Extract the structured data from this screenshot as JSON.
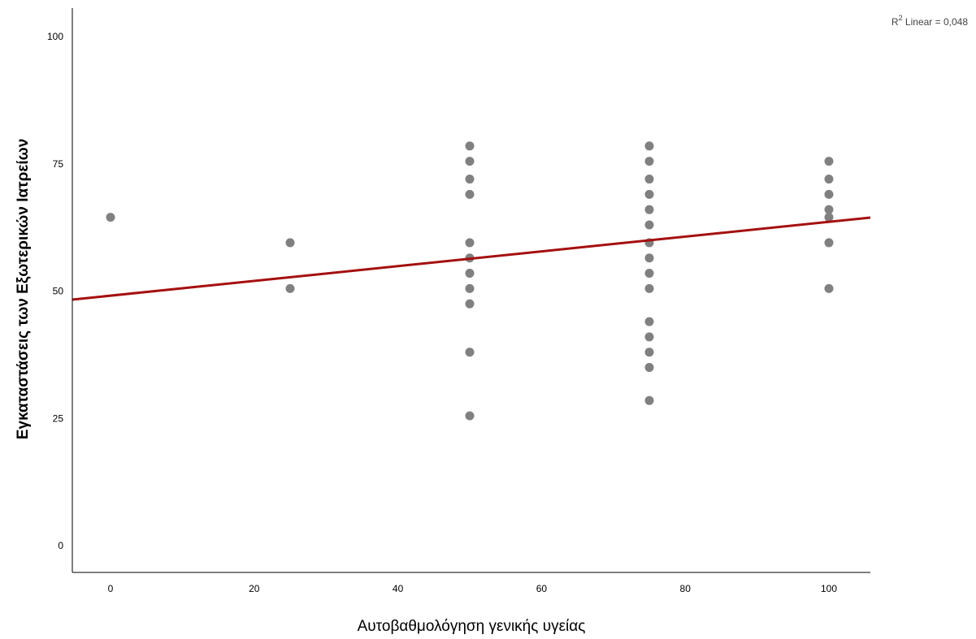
{
  "chart_data": {
    "type": "scatter",
    "title": "",
    "xlabel": "Αυτοβαθμολόγηση γενικής υγείας",
    "ylabel": "Εγκαταστάσεις των Εξωτερικών Ιατρείων",
    "xlim": [
      -5,
      105
    ],
    "ylim": [
      -5,
      105
    ],
    "x_ticks": [
      0,
      20,
      40,
      60,
      80,
      100
    ],
    "y_ticks": [
      0,
      25,
      50,
      75,
      100
    ],
    "grid": false,
    "annotation": {
      "prefix": "R",
      "superscript": "2",
      "text": " Linear = 0,048"
    },
    "marker_color": "#808080",
    "fit_line_color": "#a50f0f",
    "fit_line": {
      "intercept": 49.1,
      "slope": 0.145
    },
    "points": [
      {
        "x": 0,
        "y": 64.5
      },
      {
        "x": 25,
        "y": 59.5
      },
      {
        "x": 25,
        "y": 50.5
      },
      {
        "x": 50,
        "y": 78.5
      },
      {
        "x": 50,
        "y": 75.5
      },
      {
        "x": 50,
        "y": 72
      },
      {
        "x": 50,
        "y": 69
      },
      {
        "x": 50,
        "y": 59.5
      },
      {
        "x": 50,
        "y": 56.5
      },
      {
        "x": 50,
        "y": 53.5
      },
      {
        "x": 50,
        "y": 50.5
      },
      {
        "x": 50,
        "y": 47.5
      },
      {
        "x": 50,
        "y": 38
      },
      {
        "x": 50,
        "y": 25.5
      },
      {
        "x": 75,
        "y": 78.5
      },
      {
        "x": 75,
        "y": 75.5
      },
      {
        "x": 75,
        "y": 72
      },
      {
        "x": 75,
        "y": 69
      },
      {
        "x": 75,
        "y": 66
      },
      {
        "x": 75,
        "y": 63
      },
      {
        "x": 75,
        "y": 59.5
      },
      {
        "x": 75,
        "y": 56.5
      },
      {
        "x": 75,
        "y": 53.5
      },
      {
        "x": 75,
        "y": 50.5
      },
      {
        "x": 75,
        "y": 44
      },
      {
        "x": 75,
        "y": 41
      },
      {
        "x": 75,
        "y": 38
      },
      {
        "x": 75,
        "y": 35
      },
      {
        "x": 75,
        "y": 28.5
      },
      {
        "x": 100,
        "y": 75.5
      },
      {
        "x": 100,
        "y": 72
      },
      {
        "x": 100,
        "y": 69
      },
      {
        "x": 100,
        "y": 66
      },
      {
        "x": 100,
        "y": 64.5
      },
      {
        "x": 100,
        "y": 59.5
      },
      {
        "x": 100,
        "y": 50.5
      }
    ]
  }
}
